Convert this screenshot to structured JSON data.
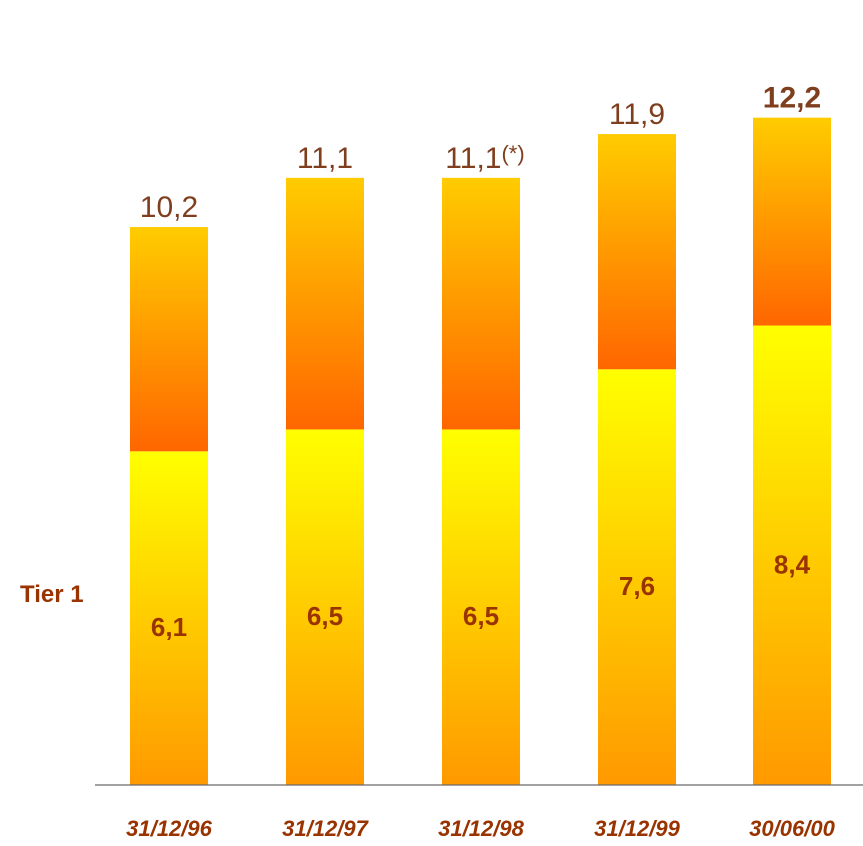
{
  "chart_data": {
    "type": "bar",
    "stacked": true,
    "categories": [
      "31/12/96",
      "31/12/97",
      "31/12/98",
      "31/12/99",
      "30/06/00"
    ],
    "series": [
      {
        "name": "Tier 1",
        "values": [
          6.1,
          6.5,
          6.5,
          7.6,
          8.4
        ]
      }
    ],
    "totals": [
      10.2,
      11.1,
      11.1,
      11.9,
      12.2
    ],
    "series_labels": [
      "6,1",
      "6,5",
      "6,5",
      "7,6",
      "8,4"
    ],
    "total_labels": [
      {
        "text": "10,2",
        "note": ""
      },
      {
        "text": "11,1",
        "note": ""
      },
      {
        "text": "11,1",
        "note": "(*)"
      },
      {
        "text": "11,9",
        "note": ""
      },
      {
        "text": "12,2",
        "note": ""
      }
    ],
    "category_labels": [
      "31/12/96",
      "31/12/97",
      "31/12/98",
      "31/12/99",
      "30/06/00"
    ],
    "highlight_last_total": true,
    "ylim": [
      0,
      12.2
    ],
    "grid": false,
    "colors": {
      "tier1_top": "#ffff00",
      "tier1_bottom": "#ff9900",
      "upper_top": "#ffcc00",
      "upper_bottom": "#ff6600",
      "label_text": "#993300",
      "total_text": "#7f3f1f",
      "axis": "#6b6b6b"
    }
  },
  "labels": {
    "tier1": "Tier 1"
  }
}
